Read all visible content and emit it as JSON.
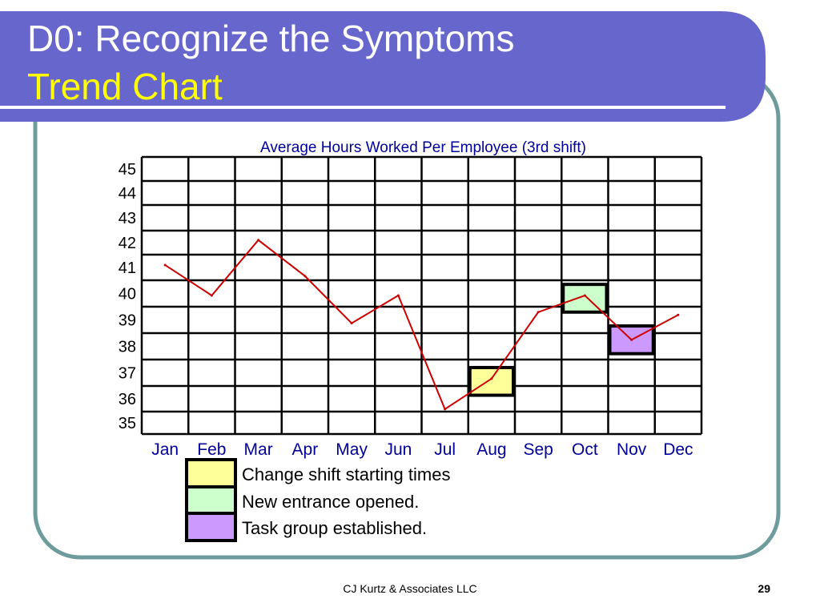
{
  "slide": {
    "title_line1": "D0: Recognize the Symptoms",
    "title_line2": "Trend Chart",
    "footer": "CJ Kurtz & Associates LLC",
    "page_number": "29"
  },
  "colors": {
    "header_band": "#6666cc",
    "frame_border": "#6e9b9b",
    "line": "#cc0000",
    "chart_title": "#000099"
  },
  "chart_data": {
    "type": "line",
    "title": "Average Hours Worked Per Employee (3rd shift)",
    "xlabel": "",
    "ylabel": "",
    "categories": [
      "Jan",
      "Feb",
      "Mar",
      "Apr",
      "May",
      "Jun",
      "Jul",
      "Aug",
      "Sep",
      "Oct",
      "Nov",
      "Dec"
    ],
    "y_ticks": [
      "35",
      "36",
      "37",
      "38",
      "39",
      "40",
      "41",
      "42",
      "43",
      "44",
      "45"
    ],
    "ylim": [
      35,
      45
    ],
    "grid": true,
    "series": [
      {
        "values": [
          41.1,
          40.0,
          42.0,
          40.7,
          39.0,
          40.0,
          35.9,
          37.0,
          39.4,
          40.0,
          38.4,
          39.3
        ]
      }
    ],
    "legend": [
      {
        "label": "Change shift starting times",
        "color": "#ffff99"
      },
      {
        "label": "New entrance opened.",
        "color": "#ccffcc"
      },
      {
        "label": "Task group established.",
        "color": "#cc99ff"
      }
    ],
    "highlights": [
      {
        "month": "Aug",
        "range": [
          36.4,
          37.4
        ],
        "color": "#ffff99"
      },
      {
        "month": "Oct",
        "range": [
          39.4,
          40.4
        ],
        "color": "#ccffcc"
      },
      {
        "month": "Nov",
        "range": [
          37.9,
          38.9
        ],
        "color": "#cc99ff"
      }
    ]
  }
}
